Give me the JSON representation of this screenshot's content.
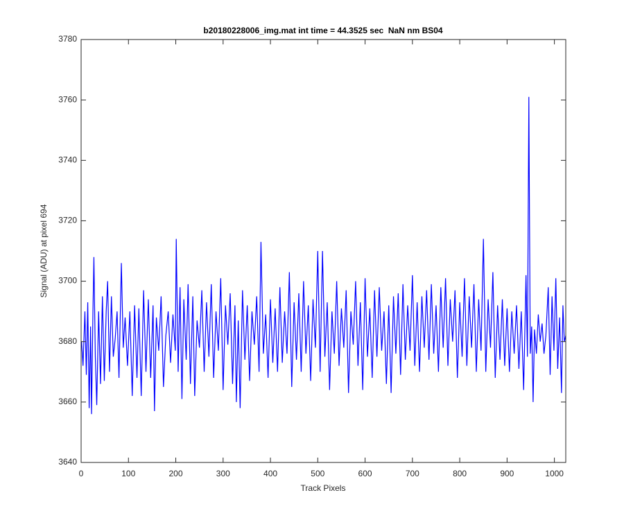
{
  "chart_data": {
    "type": "line",
    "title": "b20180228006_img.mat int time = 44.3525 sec  NaN nm BS04",
    "xlabel": "Track Pixels",
    "ylabel": "Signal (ADU) at pixel 694",
    "color": "#0000ff",
    "xlim": [
      0,
      1024
    ],
    "ylim": [
      3640,
      3780
    ],
    "xticks": [
      0,
      100,
      200,
      300,
      400,
      500,
      600,
      700,
      800,
      900,
      1000
    ],
    "yticks": [
      3640,
      3660,
      3680,
      3700,
      3720,
      3740,
      3760,
      3780
    ],
    "x": [
      1,
      4,
      8,
      11,
      14,
      17,
      20,
      22,
      25,
      27,
      30,
      33,
      37,
      41,
      45,
      49,
      53,
      56,
      60,
      64,
      68,
      72,
      76,
      80,
      85,
      89,
      93,
      98,
      103,
      108,
      113,
      118,
      122,
      127,
      132,
      137,
      142,
      147,
      152,
      155,
      159,
      164,
      169,
      174,
      179,
      184,
      189,
      194,
      199,
      201,
      205,
      209,
      213,
      217,
      222,
      226,
      231,
      236,
      240,
      245,
      250,
      255,
      260,
      265,
      270,
      275,
      280,
      285,
      290,
      295,
      300,
      305,
      310,
      315,
      320,
      325,
      328,
      332,
      336,
      341,
      346,
      351,
      356,
      361,
      366,
      371,
      376,
      380,
      385,
      390,
      395,
      400,
      405,
      410,
      415,
      420,
      425,
      430,
      435,
      440,
      445,
      450,
      455,
      460,
      465,
      470,
      475,
      480,
      485,
      490,
      495,
      500,
      505,
      510,
      515,
      520,
      525,
      530,
      535,
      540,
      545,
      550,
      555,
      560,
      565,
      570,
      575,
      580,
      585,
      590,
      595,
      600,
      605,
      610,
      615,
      620,
      625,
      630,
      635,
      640,
      645,
      650,
      655,
      660,
      665,
      670,
      675,
      680,
      685,
      690,
      695,
      700,
      705,
      710,
      715,
      720,
      725,
      730,
      735,
      740,
      745,
      750,
      755,
      760,
      765,
      770,
      775,
      780,
      785,
      790,
      795,
      800,
      805,
      810,
      815,
      820,
      825,
      830,
      835,
      840,
      845,
      850,
      855,
      860,
      865,
      870,
      875,
      880,
      885,
      890,
      895,
      900,
      905,
      910,
      915,
      920,
      925,
      930,
      935,
      940,
      943,
      946,
      949,
      952,
      955,
      958,
      962,
      966,
      970,
      974,
      978,
      982,
      987,
      991,
      995,
      999,
      1003,
      1007,
      1011,
      1015,
      1018,
      1021,
      1024
    ],
    "values": [
      3680,
      3672,
      3690,
      3669,
      3693,
      3658,
      3685,
      3656,
      3690,
      3708,
      3675,
      3659,
      3690,
      3666,
      3695,
      3667,
      3690,
      3700,
      3670,
      3695,
      3675,
      3681,
      3690,
      3668,
      3706,
      3678,
      3688,
      3672,
      3690,
      3662,
      3692,
      3668,
      3691,
      3662,
      3697,
      3670,
      3694,
      3668,
      3692,
      3657,
      3688,
      3677,
      3695,
      3665,
      3682,
      3690,
      3673,
      3689,
      3677,
      3714,
      3670,
      3698,
      3661,
      3694,
      3674,
      3699,
      3666,
      3695,
      3662,
      3687,
      3678,
      3697,
      3670,
      3693,
      3675,
      3699,
      3668,
      3690,
      3677,
      3701,
      3664,
      3692,
      3679,
      3696,
      3666,
      3692,
      3660,
      3687,
      3658,
      3697,
      3674,
      3692,
      3667,
      3690,
      3679,
      3695,
      3670,
      3713,
      3676,
      3689,
      3668,
      3694,
      3673,
      3691,
      3670,
      3698,
      3673,
      3690,
      3676,
      3703,
      3665,
      3693,
      3674,
      3696,
      3670,
      3700,
      3676,
      3692,
      3667,
      3694,
      3678,
      3710,
      3670,
      3710,
      3675,
      3693,
      3664,
      3690,
      3676,
      3700,
      3672,
      3691,
      3678,
      3697,
      3663,
      3690,
      3679,
      3700,
      3672,
      3693,
      3664,
      3701,
      3675,
      3691,
      3668,
      3697,
      3675,
      3698,
      3677,
      3690,
      3666,
      3692,
      3663,
      3695,
      3676,
      3696,
      3669,
      3699,
      3674,
      3692,
      3677,
      3702,
      3672,
      3693,
      3670,
      3695,
      3678,
      3697,
      3674,
      3699,
      3676,
      3692,
      3670,
      3698,
      3678,
      3701,
      3672,
      3694,
      3680,
      3697,
      3668,
      3693,
      3675,
      3701,
      3672,
      3695,
      3678,
      3699,
      3670,
      3694,
      3677,
      3714,
      3670,
      3694,
      3678,
      3703,
      3668,
      3692,
      3674,
      3694,
      3672,
      3691,
      3670,
      3690,
      3676,
      3692,
      3671,
      3690,
      3664,
      3702,
      3675,
      3761,
      3676,
      3685,
      3660,
      3684,
      3676,
      3689,
      3680,
      3686,
      3676,
      3682,
      3698,
      3669,
      3695,
      3677,
      3701,
      3671,
      3688,
      3663,
      3692,
      3680,
      3682
    ]
  }
}
